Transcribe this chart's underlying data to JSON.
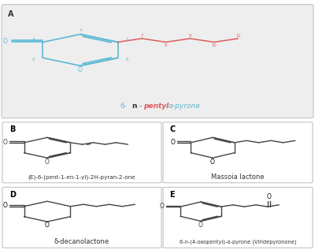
{
  "bg_color": "#ffffff",
  "panel_A_bg": "#eeeeee",
  "panel_border": "#cccccc",
  "color_ring_A": "#5bb8d4",
  "color_chain_A": "#e05c5c",
  "color_black": "#444444",
  "label_A": "A",
  "label_B": "B",
  "label_C": "C",
  "label_D": "D",
  "label_E": "E",
  "title_B": "(E)-6-(pent-1-en-1-yl)-2H-pyran-2-one",
  "title_C": "Massoia lactone",
  "title_D": "δ-decanolactone",
  "title_E": "6-n-(4-oxopentyl)-α-pyrone (Viridepyronone)",
  "panels": {
    "A": [
      0.01,
      0.53,
      0.98,
      0.45
    ],
    "B": [
      0.01,
      0.27,
      0.5,
      0.24
    ],
    "C": [
      0.52,
      0.27,
      0.47,
      0.24
    ],
    "D": [
      0.01,
      0.01,
      0.5,
      0.24
    ],
    "E": [
      0.52,
      0.01,
      0.47,
      0.24
    ]
  }
}
